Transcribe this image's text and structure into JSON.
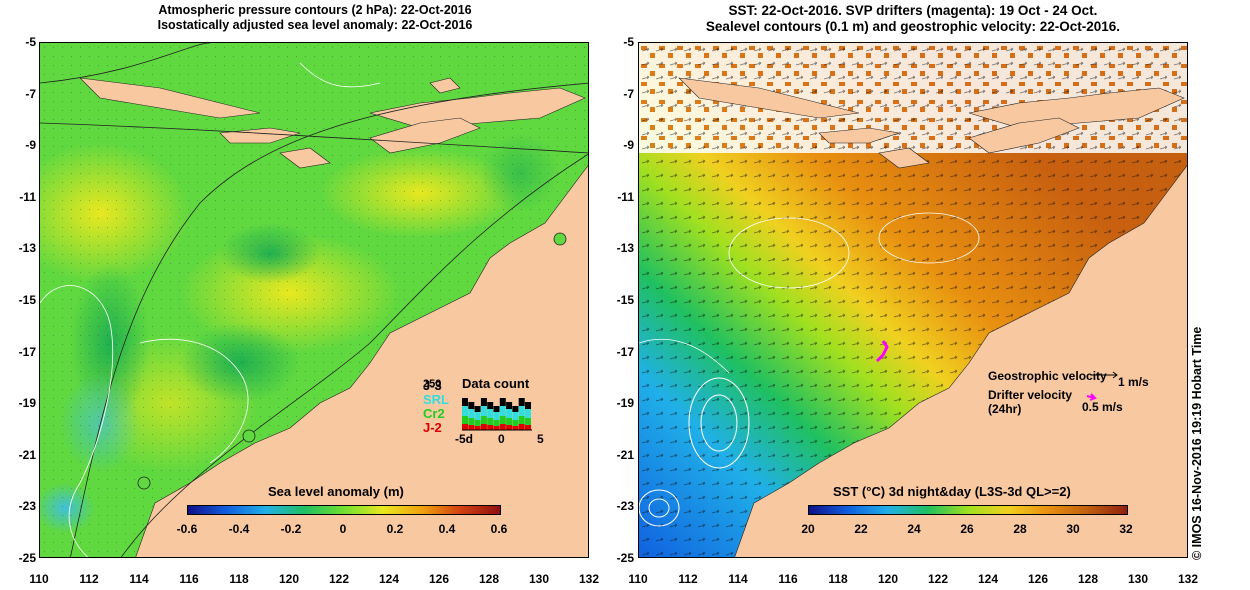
{
  "left_title": {
    "line1": "Atmospheric pressure contours (2 hPa): 22-Oct-2016",
    "line2": "Isostatically adjusted sea level anomaly: 22-Oct-2016"
  },
  "right_title": {
    "line1": "SST: 22-Oct-2016. SVP drifters (magenta): 19 Oct - 24 Oct.",
    "line2": "Sealevel contours (0.1 m) and geostrophic velocity: 22-Oct-2016."
  },
  "axes": {
    "lat_labels": [
      "-5",
      "-7",
      "-9",
      "-11",
      "-13",
      "-15",
      "-17",
      "-19",
      "-21",
      "-23",
      "-25"
    ],
    "lon_labels": [
      "110",
      "112",
      "114",
      "116",
      "118",
      "120",
      "122",
      "124",
      "126",
      "128",
      "130",
      "132"
    ]
  },
  "left_colorbar": {
    "title": "Sea level anomaly (m)",
    "labels": [
      "-0.6",
      "-0.4",
      "-0.2",
      "0",
      "0.2",
      "0.4",
      "0.6"
    ]
  },
  "right_colorbar": {
    "title": "SST (°C) 3d night&day (L3S-3d QL>=2)",
    "labels": [
      "20",
      "22",
      "24",
      "26",
      "28",
      "30",
      "32"
    ]
  },
  "data_count": {
    "title": "Data count",
    "satellites": [
      "J-3",
      "SRL",
      "Cr2",
      "J-2"
    ],
    "overlap_label": "250",
    "colors": [
      "#000000",
      "#33dddd",
      "#22cc22",
      "#dd0000"
    ],
    "x_labels": [
      "-5d",
      "0",
      "5"
    ]
  },
  "velocity_legend": {
    "geostrophic": "Geostrophic velocity",
    "geostrophic_scale": "1 m/s",
    "drifter_line1": "Drifter velocity",
    "drifter_line2": "(24hr)",
    "drifter_scale": "0.5 m/s"
  },
  "credit": "© IMOS 16-Nov-2016 19:19 Hobart Time",
  "colors": {
    "land": "#f8c8a0",
    "sla_ramp": [
      "#10108a",
      "#1060e0",
      "#20b0e8",
      "#20c060",
      "#70e030",
      "#e8e820",
      "#f0a010",
      "#d04010",
      "#901010"
    ],
    "sst_ramp": [
      "#10108a",
      "#1060e0",
      "#20b0e8",
      "#20c060",
      "#a0e020",
      "#f0d020",
      "#e89010",
      "#c06010",
      "#902010"
    ]
  }
}
